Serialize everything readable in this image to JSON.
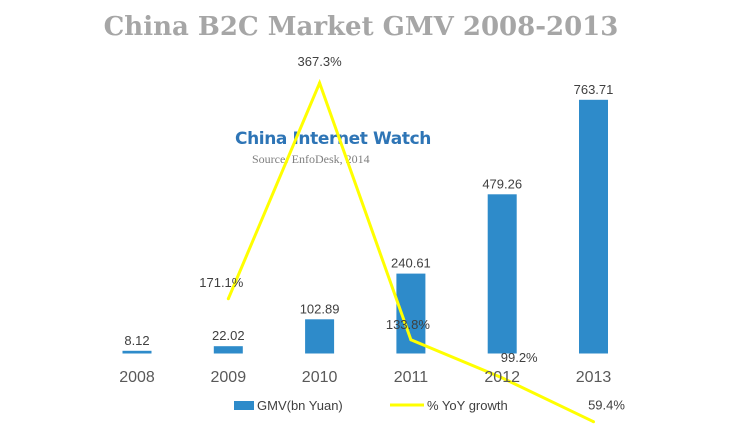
{
  "chart_data": {
    "type": "bar",
    "title": "China B2C Market GMV 2008-2013",
    "categories": [
      "2008",
      "2009",
      "2010",
      "2011",
      "2012",
      "2013"
    ],
    "series": [
      {
        "name": "GMV(bn Yuan)",
        "type": "bar",
        "values": [
          8.12,
          22.02,
          102.89,
          240.61,
          479.26,
          763.71
        ],
        "labels": [
          "8.12",
          "22.02",
          "102.89",
          "240.61",
          "479.26",
          "763.71"
        ],
        "color": "#2e8bca"
      },
      {
        "name": "% YoY growth",
        "type": "line",
        "values": [
          null,
          171.1,
          367.3,
          133.8,
          99.2,
          59.4
        ],
        "labels": [
          "",
          "171.1%",
          "367.3%",
          "133.8%",
          "99.2%",
          "59.4%"
        ],
        "color": "#ffff00"
      }
    ],
    "legend_position": "bottom",
    "grid": false
  },
  "watermark": {
    "brand": "China Internet Watch",
    "source": "Source: EnfoDesk, 2014"
  }
}
